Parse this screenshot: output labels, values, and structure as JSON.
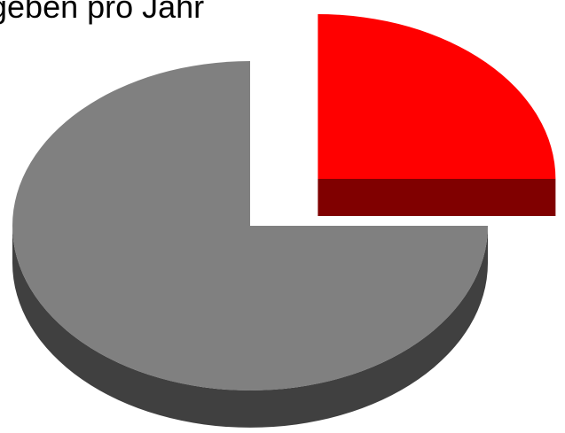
{
  "chart_data": {
    "type": "pie",
    "title": "geben pro Jahr",
    "slices": [
      {
        "value": 75,
        "color": "#808080",
        "side_color": "#404040"
      },
      {
        "value": 25,
        "color": "#ff0000",
        "side_color": "#800000",
        "exploded": true
      }
    ],
    "three_d": true,
    "legend": "none"
  }
}
